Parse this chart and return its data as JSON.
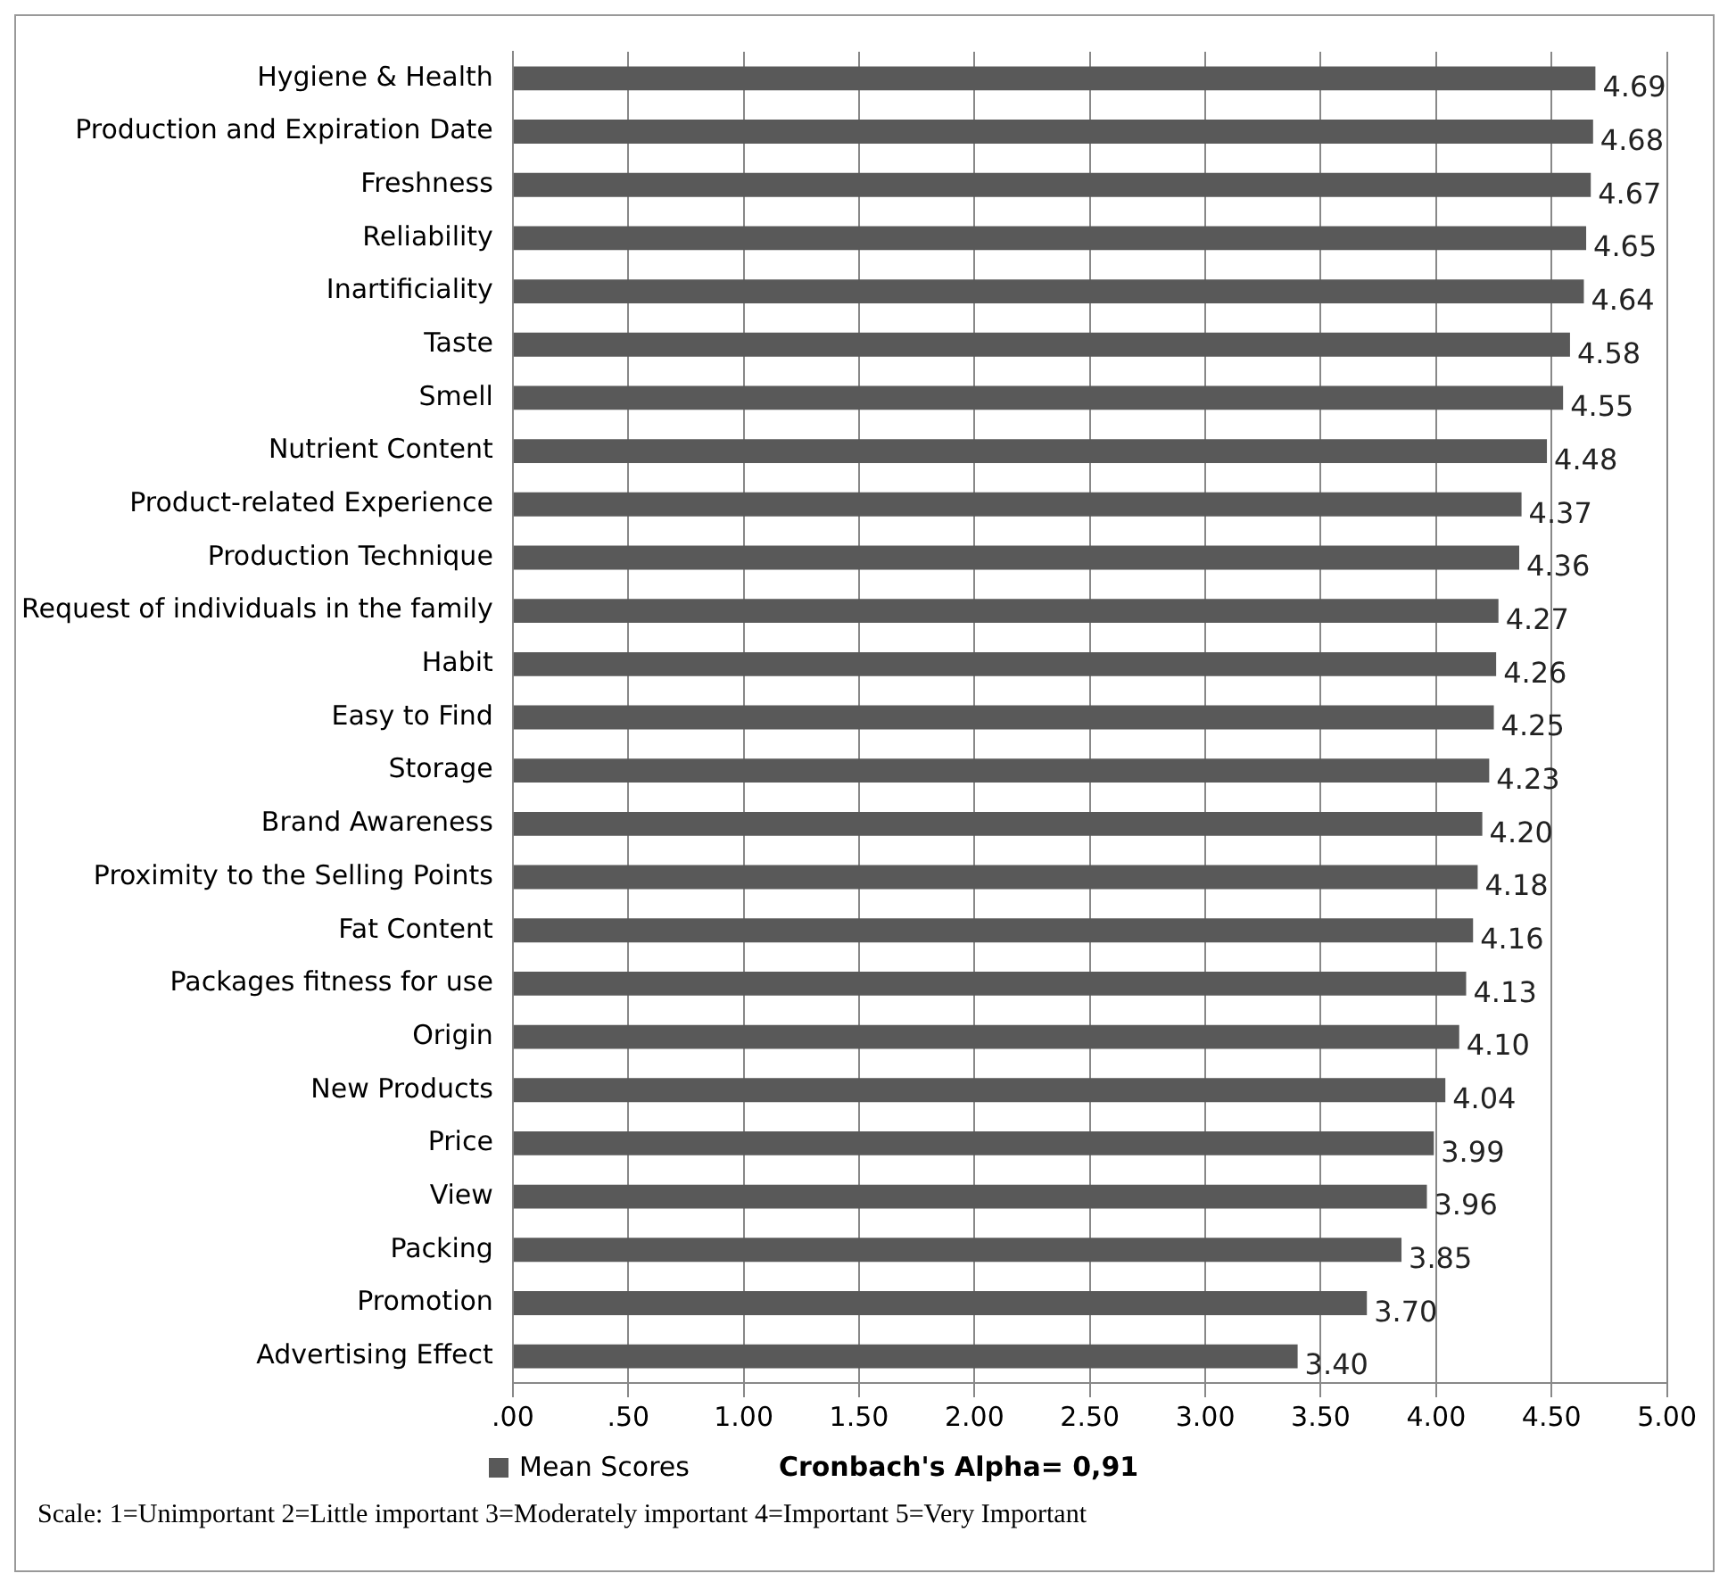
{
  "chart_data": {
    "type": "bar",
    "orientation": "horizontal",
    "categories": [
      "Hygiene & Health",
      "Production and Expiration Date",
      "Freshness",
      "Reliability",
      "Inartificiality",
      "Taste",
      "Smell",
      "Nutrient Content",
      "Product-related Experience",
      "Production Technique",
      "Request of individuals in the family",
      "Habit",
      "Easy to Find",
      "Storage",
      "Brand Awareness",
      "Proximity to the Selling Points",
      "Fat Content",
      "Packages fitness for use",
      "Origin",
      "New Products",
      "Price",
      "View",
      "Packing",
      "Promotion",
      "Advertising Effect"
    ],
    "series": [
      {
        "name": "Mean Scores",
        "color": "#595959",
        "values": [
          4.69,
          4.68,
          4.67,
          4.65,
          4.64,
          4.58,
          4.55,
          4.48,
          4.37,
          4.36,
          4.27,
          4.26,
          4.25,
          4.23,
          4.2,
          4.18,
          4.16,
          4.13,
          4.1,
          4.04,
          3.99,
          3.96,
          3.85,
          3.7,
          3.4
        ],
        "value_labels": [
          "4.69",
          "4.68",
          "4.67",
          "4.65",
          "4.64",
          "4.58",
          "4.55",
          "4.48",
          "4.37",
          "4.36",
          "4.27",
          "4.26",
          "4.25",
          "4.23",
          "4.20",
          "4.18",
          "4.16",
          "4.13",
          "4.10",
          "4.04",
          "3.99",
          "3.96",
          "3.85",
          "3.70",
          "3.40"
        ]
      }
    ],
    "xlim": [
      0,
      5
    ],
    "xticks": [
      {
        "value": 0,
        "label": ".00"
      },
      {
        "value": 0.5,
        "label": ".50"
      },
      {
        "value": 1,
        "label": "1.00"
      },
      {
        "value": 1.5,
        "label": "1.50"
      },
      {
        "value": 2,
        "label": "2.00"
      },
      {
        "value": 2.5,
        "label": "2.50"
      },
      {
        "value": 3,
        "label": "3.00"
      },
      {
        "value": 3.5,
        "label": "3.50"
      },
      {
        "value": 4,
        "label": "4.00"
      },
      {
        "value": 4.5,
        "label": "4.50"
      },
      {
        "value": 5,
        "label": "5.00"
      }
    ],
    "grid": "x",
    "legend": "bottom",
    "annotations": [
      "Cronbach's Alpha= 0,91",
      "Scale: 1=Unimportant 2=Little important 3=Moderately important 4=Important 5=Very Important"
    ]
  }
}
